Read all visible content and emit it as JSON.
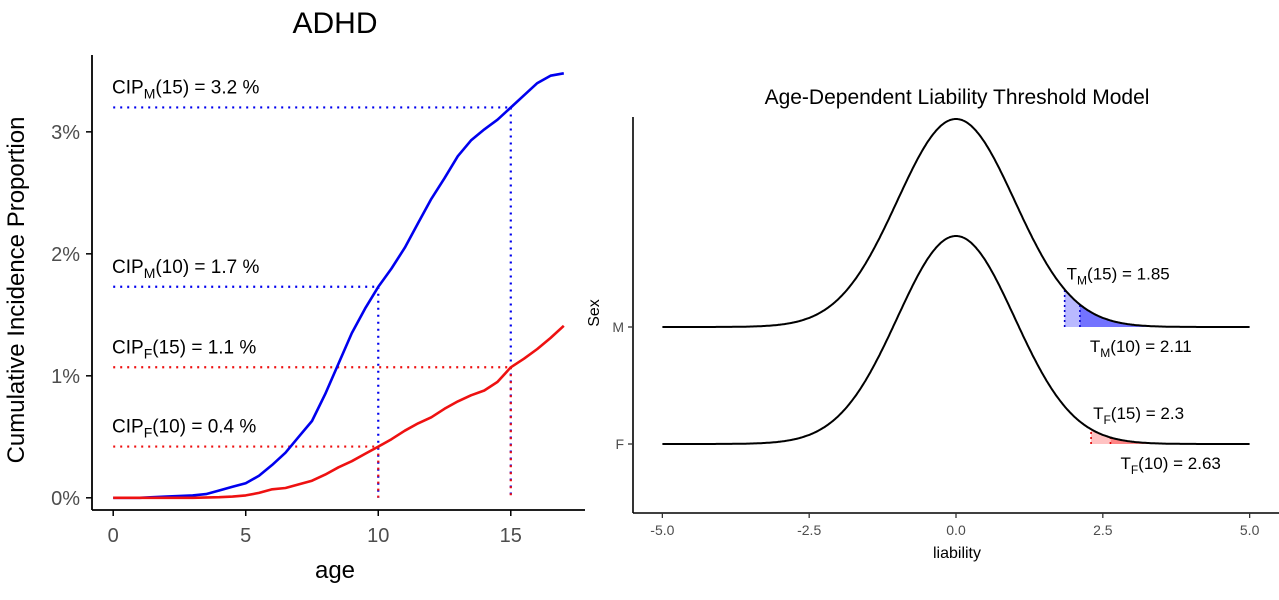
{
  "chart_data": [
    {
      "type": "line",
      "title": "ADHD",
      "xlabel": "age",
      "ylabel": "Cumulative Incidence Proportion",
      "xlim": [
        -0.8,
        17.8
      ],
      "ylim": [
        -0.1,
        3.63
      ],
      "x_ticks": [
        0,
        5,
        10,
        15
      ],
      "x_tick_labels": [
        "0",
        "5",
        "10",
        "15"
      ],
      "y_ticks": [
        0,
        1,
        2,
        3
      ],
      "y_tick_labels": [
        "0%",
        "1%",
        "2%",
        "3%"
      ],
      "grid": false,
      "series": [
        {
          "color": "#0000ee",
          "x": [
            0,
            1,
            2,
            3,
            3.5,
            4,
            4.5,
            5,
            5.5,
            6,
            6.5,
            7,
            7.5,
            8,
            8.5,
            9,
            9.5,
            10,
            10.5,
            11,
            11.5,
            12,
            12.5,
            13,
            13.5,
            14,
            14.5,
            15,
            15.5,
            16,
            16.5,
            17
          ],
          "values": [
            0,
            0,
            0.01,
            0.02,
            0.03,
            0.06,
            0.09,
            0.12,
            0.18,
            0.27,
            0.37,
            0.5,
            0.63,
            0.85,
            1.1,
            1.35,
            1.55,
            1.73,
            1.88,
            2.05,
            2.25,
            2.45,
            2.62,
            2.8,
            2.93,
            3.02,
            3.1,
            3.2,
            3.3,
            3.4,
            3.46,
            3.48
          ]
        },
        {
          "color": "#ee1111",
          "x": [
            0,
            1,
            2,
            3,
            4,
            4.5,
            5,
            5.5,
            6,
            6.5,
            7,
            7.5,
            8,
            8.5,
            9,
            9.5,
            10,
            10.5,
            11,
            11.5,
            12,
            12.5,
            13,
            13.5,
            14,
            14.5,
            15,
            15.5,
            16,
            16.5,
            17
          ],
          "values": [
            0,
            0,
            0,
            0,
            0.005,
            0.01,
            0.02,
            0.04,
            0.07,
            0.08,
            0.11,
            0.14,
            0.19,
            0.25,
            0.3,
            0.36,
            0.42,
            0.48,
            0.55,
            0.61,
            0.66,
            0.73,
            0.79,
            0.84,
            0.88,
            0.95,
            1.07,
            1.14,
            1.22,
            1.31,
            1.41
          ]
        }
      ],
      "guides": [
        {
          "age": 15,
          "value": 3.2,
          "color": "#0000ee"
        },
        {
          "age": 10,
          "value": 1.73,
          "color": "#0000ee"
        },
        {
          "age": 15,
          "value": 1.07,
          "color": "#ee1111"
        },
        {
          "age": 10,
          "value": 0.42,
          "color": "#ee1111"
        }
      ],
      "annotations": [
        {
          "base": "CIP",
          "sub": "M",
          "rest": "(15) = 3.2 %"
        },
        {
          "base": "CIP",
          "sub": "M",
          "rest": "(10) = 1.7 %"
        },
        {
          "base": "CIP",
          "sub": "F",
          "rest": "(15) = 1.1 %"
        },
        {
          "base": "CIP",
          "sub": "F",
          "rest": "(10) = 0.4 %"
        }
      ]
    },
    {
      "type": "area",
      "title": "Age-Dependent Liability Threshold Model",
      "xlabel": "liability",
      "ylabel": "Sex",
      "xlim": [
        -5.5,
        5.5
      ],
      "x_ticks": [
        -5,
        -2.5,
        0,
        2.5,
        5
      ],
      "x_tick_labels": [
        "-5.0",
        "-2.5",
        "0.0",
        "2.5",
        "5.0"
      ],
      "y_categories": [
        "M",
        "F"
      ],
      "grid": false,
      "curve": "standard normal density",
      "curve_range": [
        -5,
        5
      ],
      "rows": [
        {
          "sex": "M",
          "thresholds": [
            1.85,
            2.11
          ],
          "fill_color": "#6464ff",
          "annotations": [
            {
              "base": "T",
              "sub": "M",
              "rest": "(15) = 1.85"
            },
            {
              "base": "T",
              "sub": "M",
              "rest": "(10) = 2.11"
            }
          ]
        },
        {
          "sex": "F",
          "thresholds": [
            2.3,
            2.63
          ],
          "fill_color": "#ff7777",
          "annotations": [
            {
              "base": "T",
              "sub": "F",
              "rest": "(15) = 2.3"
            },
            {
              "base": "T",
              "sub": "F",
              "rest": "(10) = 2.63"
            }
          ]
        }
      ]
    }
  ]
}
